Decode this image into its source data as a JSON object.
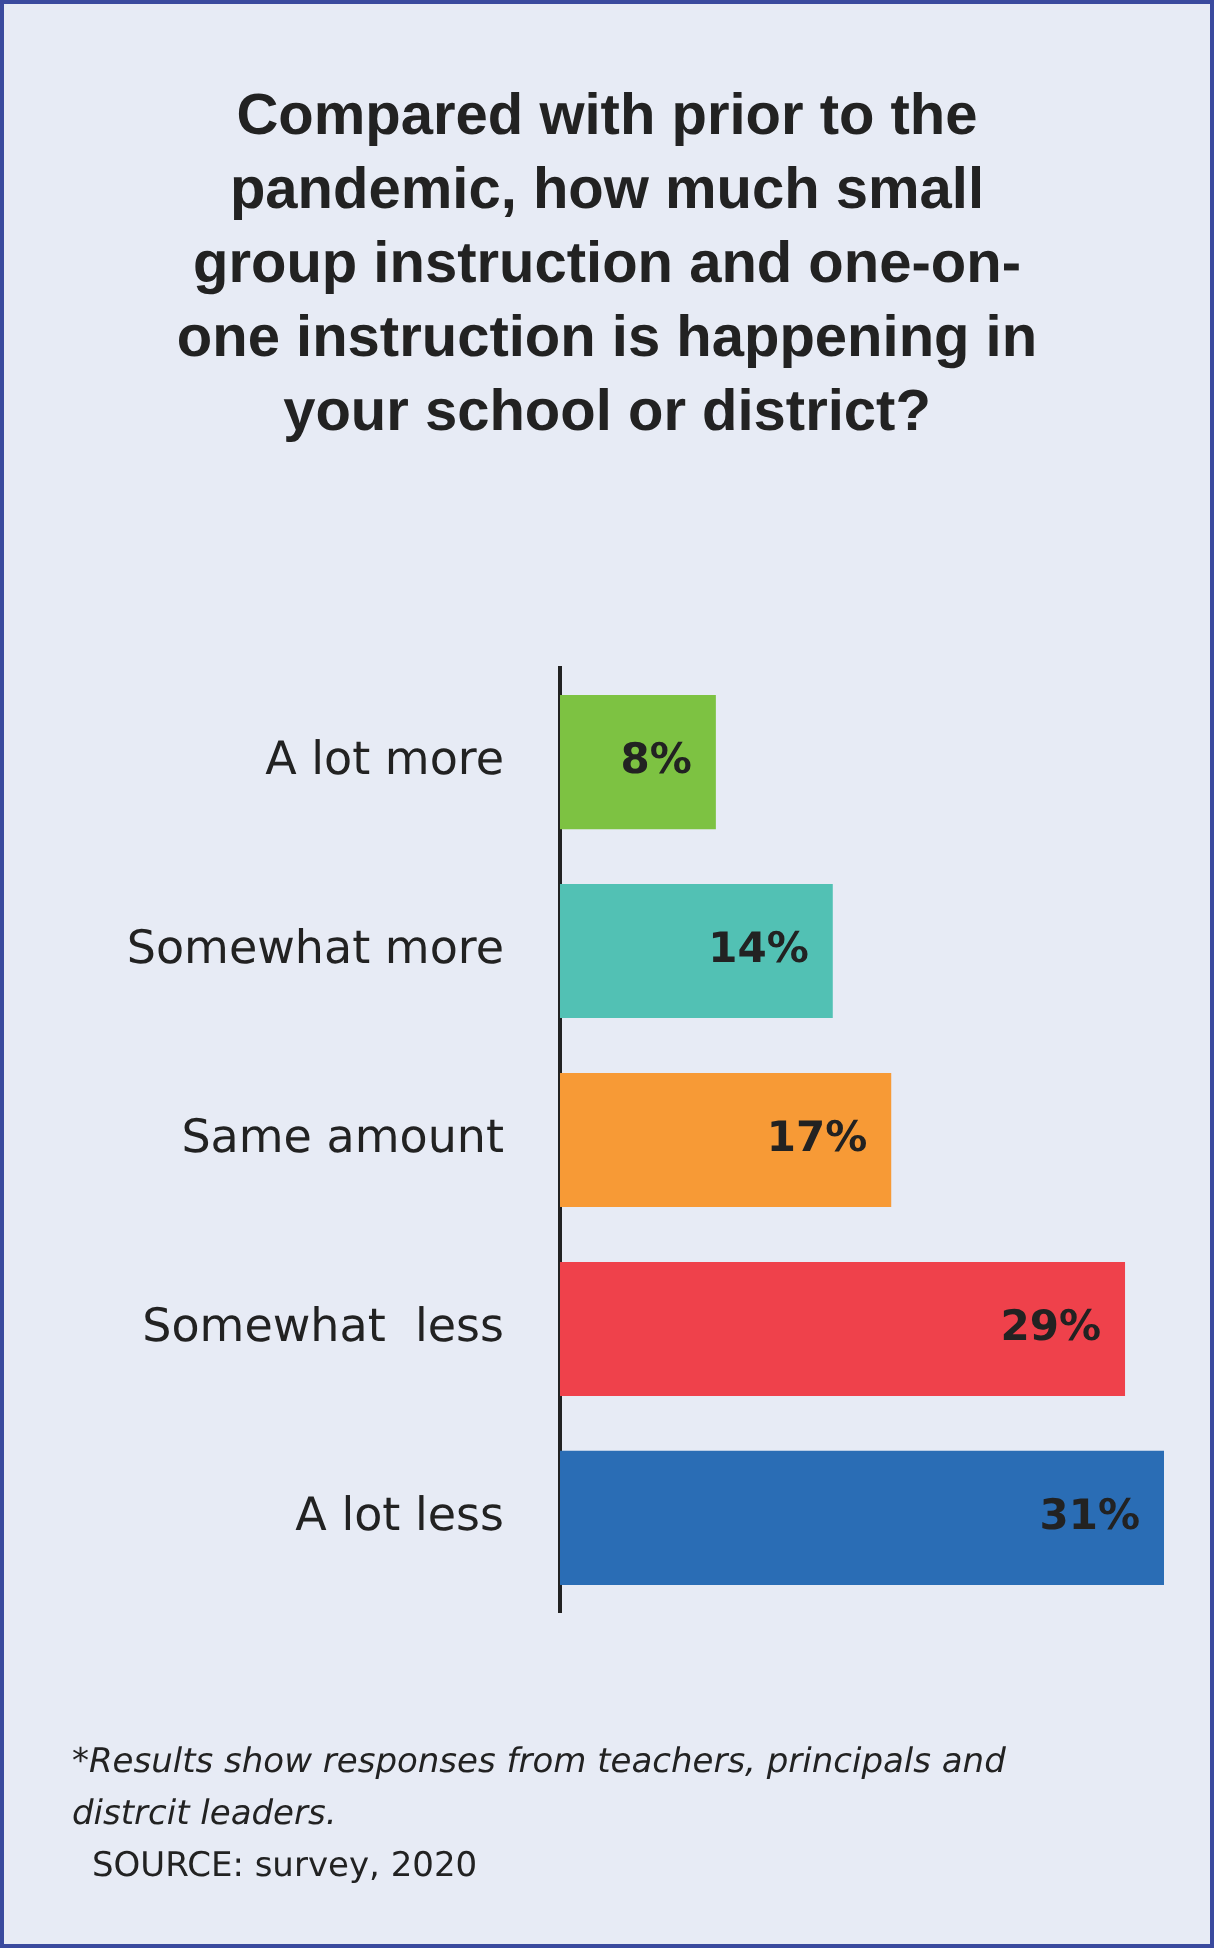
{
  "chart_data": {
    "type": "bar",
    "orientation": "horizontal",
    "title": "Compared with prior to the pandemic, how much small group instruction and one-on-one instruction is happening in your school or district?",
    "categories": [
      "A lot more",
      "Somewhat more",
      "Same amount",
      "Somewhat  less",
      "A lot less"
    ],
    "values": [
      8,
      14,
      17,
      29,
      31
    ],
    "colors": [
      "#7dc242",
      "#52c1b4",
      "#f79a36",
      "#ef414b",
      "#2a6db5"
    ],
    "value_labels": [
      "8%",
      "14%",
      "17%",
      "29%",
      "31%"
    ],
    "tick_labels": "y",
    "annotations": [
      "*Results show responses from teachers, principals and distrcit leaders.",
      "SOURCE: survey, 2020"
    ]
  }
}
